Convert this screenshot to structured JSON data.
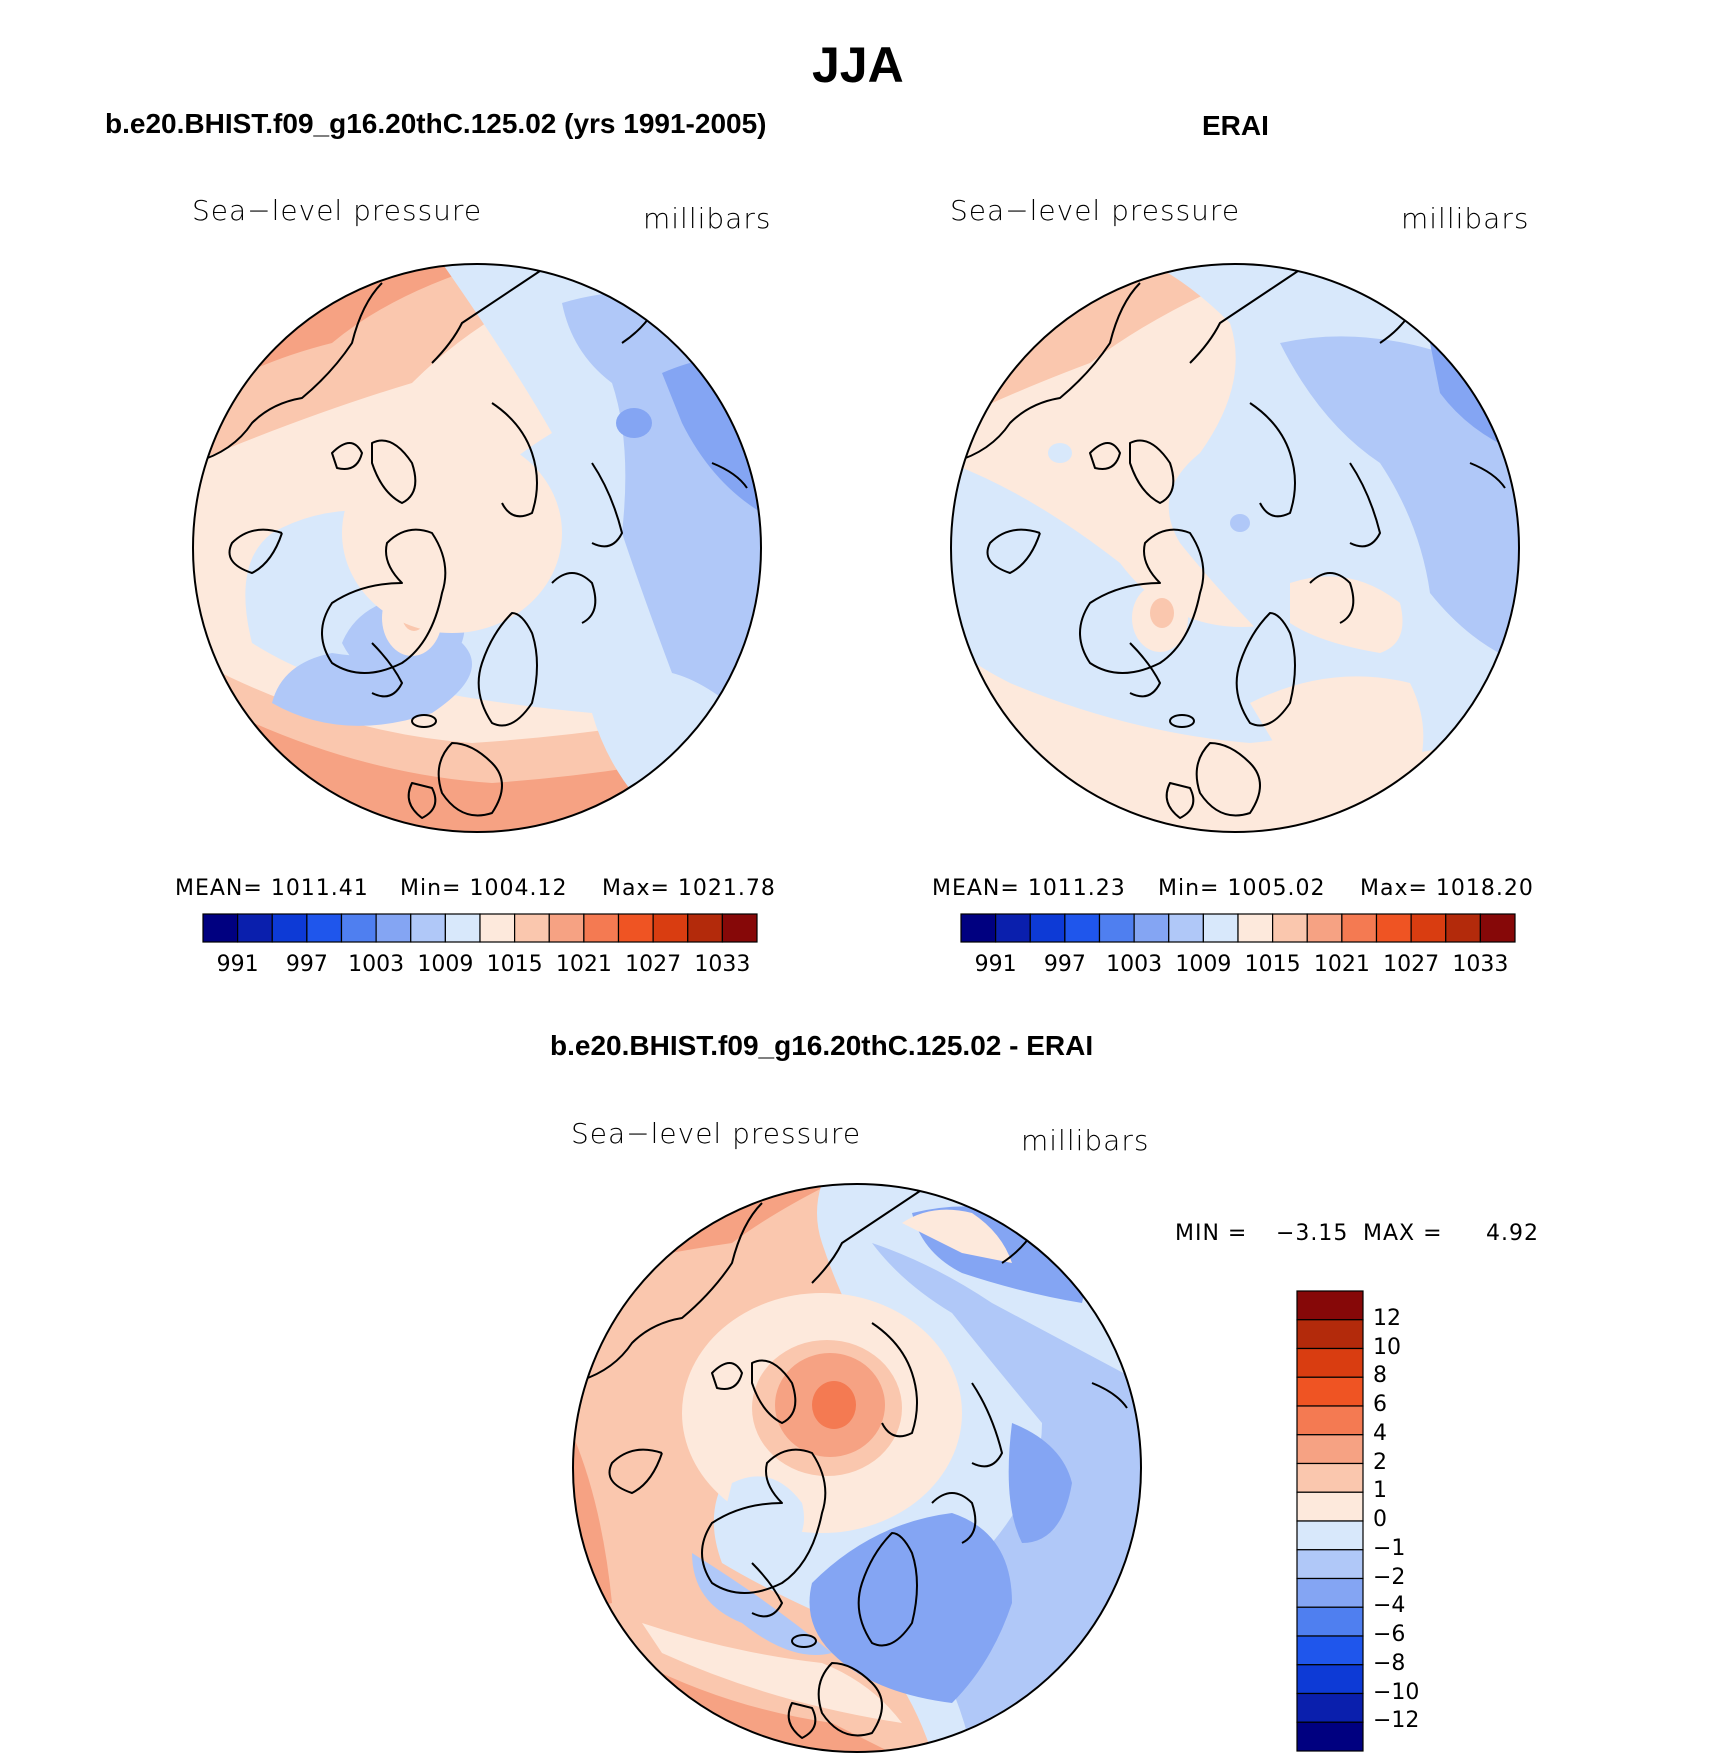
{
  "title": "JJA",
  "colors": {
    "seq_palette": [
      "#000080",
      "#0a1fad",
      "#0d3ad6",
      "#1f56ec",
      "#4f7ff0",
      "#84a5f3",
      "#b0c8f8",
      "#d8e8fb",
      "#fde9dc",
      "#fac7ae",
      "#f6a283",
      "#f47a52",
      "#ef5423",
      "#d93d11",
      "#b32a0b",
      "#860808"
    ],
    "diff_palette": [
      "#000080",
      "#0a1fad",
      "#0d3ad6",
      "#1f56ec",
      "#4f7ff0",
      "#84a5f3",
      "#b0c8f8",
      "#d8e8fb",
      "#fde9dc",
      "#fac7ae",
      "#f6a283",
      "#f47a52",
      "#ef5423",
      "#d93d11",
      "#b32a0b",
      "#860808"
    ],
    "coastline": "#000000"
  },
  "panels": [
    {
      "title": "b.e20.BHIST.f09_g16.20thC.125.02 (yrs 1991-2005)",
      "left_label": "Sea−level pressure",
      "right_label": "millibars",
      "stats": {
        "mean": "MEAN=  1011.41",
        "min": "Min=  1004.12",
        "max": "Max=  1021.78"
      },
      "colorbar_ticks": [
        "991",
        "997",
        "1003",
        "1009",
        "1015",
        "1021",
        "1027",
        "1033"
      ]
    },
    {
      "title": "ERAI",
      "left_label": "Sea−level pressure",
      "right_label": "millibars",
      "stats": {
        "mean": "MEAN=  1011.23",
        "min": "Min=  1005.02",
        "max": "Max=  1018.20"
      },
      "colorbar_ticks": [
        "991",
        "997",
        "1003",
        "1009",
        "1015",
        "1021",
        "1027",
        "1033"
      ]
    },
    {
      "title": "b.e20.BHIST.f09_g16.20thC.125.02 - ERAI",
      "left_label": "Sea−level pressure",
      "right_label": "millibars",
      "stats": {
        "min_label": "MIN =",
        "min": "−3.15",
        "max_label": "MAX =",
        "max": "4.92"
      },
      "colorbar_ticks": [
        "12",
        "10",
        "8",
        "6",
        "4",
        "2",
        "1",
        "0",
        "−1",
        "−2",
        "−4",
        "−6",
        "−8",
        "−10",
        "−12"
      ]
    }
  ]
}
